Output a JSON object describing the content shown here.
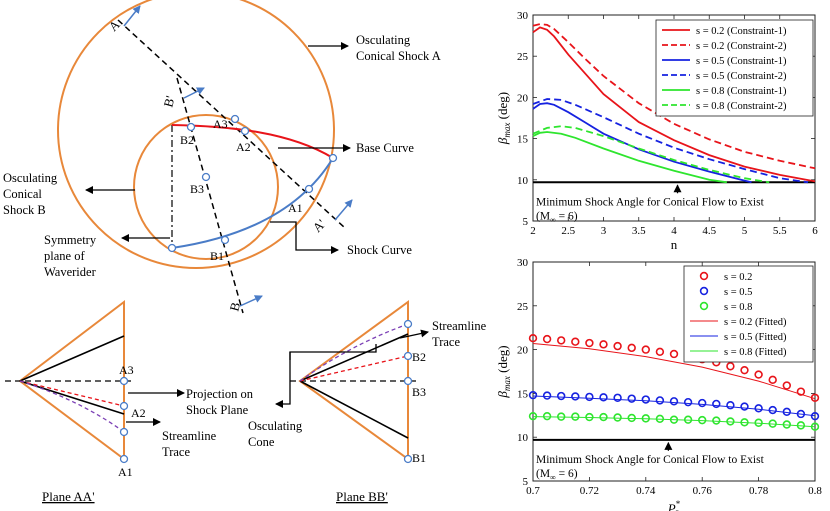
{
  "diagram": {
    "callouts": {
      "shock_a": [
        "Osculating",
        "Conical Shock  A"
      ],
      "shock_b": [
        "Osculating",
        "Conical",
        "Shock  B"
      ],
      "base_curve": "Base Curve",
      "symmetry": [
        "Symmetry",
        "plane of",
        "Waverider"
      ],
      "shock_curve": "Shock Curve"
    },
    "plane_labels": {
      "a": "A",
      "a_prime": "A'",
      "b": "B",
      "b_prime": "B'"
    },
    "points": {
      "a1": "A1",
      "a2": "A2",
      "a3": "A3",
      "b1": "B1",
      "b2": "B2",
      "b3": "B3"
    },
    "sections": {
      "plane_aa": "Plane AA'",
      "plane_bb": "Plane BB'",
      "projection": [
        "Projection on",
        "Shock Plane"
      ],
      "streamline_left": [
        "Streamline",
        "Trace"
      ],
      "streamline_right": [
        "Streamline",
        "Trace"
      ],
      "osculating_cone": [
        "Osculating",
        "Cone"
      ],
      "a1": "A1",
      "a2": "A2",
      "a3": "A3",
      "b1": "B1",
      "b2": "B2",
      "b3": "B3"
    }
  },
  "chart_data": [
    {
      "type": "line",
      "xlabel": "n",
      "ylabel": "β_max (deg)",
      "ylabel_main": "β",
      "ylabel_sub": "max",
      "ylabel_unit": " (deg)",
      "xlim": [
        2,
        6
      ],
      "ylim": [
        5,
        30
      ],
      "xticks": [
        "2",
        "2.5",
        "3",
        "3.5",
        "4",
        "4.5",
        "5",
        "5.5",
        "6"
      ],
      "yticks": [
        "5",
        "10",
        "15",
        "20",
        "25",
        "30"
      ],
      "legend_position": "top-right",
      "series": [
        {
          "name": "s = 0.2 (Constraint-1)",
          "color": "#e8141a",
          "dash": "solid",
          "x": [
            2,
            2.1,
            2.2,
            2.3,
            2.5,
            2.75,
            3,
            3.5,
            4,
            4.5,
            5,
            5.5,
            6
          ],
          "y": [
            27.9,
            28.5,
            28.2,
            27.4,
            25.2,
            22.8,
            20.4,
            17.0,
            14.8,
            13.0,
            11.6,
            10.6,
            9.8
          ]
        },
        {
          "name": "s = 0.2 (Constraint-2)",
          "color": "#e8141a",
          "dash": "dashed",
          "x": [
            2,
            2.1,
            2.2,
            2.3,
            2.5,
            2.75,
            3,
            3.5,
            4,
            4.5,
            5,
            5.5,
            6
          ],
          "y": [
            28.7,
            28.9,
            28.8,
            28.3,
            26.7,
            24.6,
            22.6,
            19.3,
            16.8,
            14.9,
            13.4,
            12.3,
            11.4
          ]
        },
        {
          "name": "s = 0.5 (Constraint-1)",
          "color": "#1622e0",
          "dash": "solid",
          "x": [
            2,
            2.1,
            2.2,
            2.3,
            2.5,
            2.75,
            3,
            3.5,
            4,
            4.5,
            5,
            5.1
          ],
          "y": [
            18.6,
            19.2,
            19.3,
            19.1,
            18.2,
            16.9,
            15.6,
            13.7,
            12.2,
            11.0,
            9.9,
            9.7
          ]
        },
        {
          "name": "s = 0.5 (Constraint-2)",
          "color": "#1622e0",
          "dash": "dashed",
          "x": [
            2,
            2.2,
            2.4,
            2.6,
            3,
            3.5,
            4,
            4.5,
            5,
            5.5,
            5.9
          ],
          "y": [
            19.2,
            19.8,
            19.7,
            19.1,
            17.6,
            15.6,
            13.9,
            12.5,
            11.3,
            10.2,
            9.7
          ]
        },
        {
          "name": "s = 0.8 (Constraint-1)",
          "color": "#2ee52e",
          "dash": "solid",
          "x": [
            2,
            2.1,
            2.2,
            2.4,
            2.6,
            3,
            3.5,
            4,
            4.5,
            4.75
          ],
          "y": [
            15.3,
            15.7,
            15.8,
            15.6,
            15.1,
            13.8,
            12.3,
            11.1,
            10.0,
            9.7
          ]
        },
        {
          "name": "s = 0.8 (Constraint-2)",
          "color": "#2ee52e",
          "dash": "dashed",
          "x": [
            2,
            2.2,
            2.4,
            2.6,
            3,
            3.5,
            4,
            4.5,
            5,
            5.35
          ],
          "y": [
            15.6,
            16.3,
            16.5,
            16.3,
            15.3,
            13.8,
            12.4,
            11.2,
            10.2,
            9.7
          ]
        }
      ],
      "reference_line": {
        "y": 9.7,
        "color": "#000000"
      },
      "annotation": {
        "line1": "Minimum Shock Angle for Conical Flow to Exist",
        "line2_prefix": "(M",
        "line2_sub": "∞",
        "line2_suffix": " = 6)",
        "arrow_x": 4.05
      }
    },
    {
      "type": "scatter",
      "xlabel": "P3*",
      "xlabel_main": "P",
      "xlabel_sub": "3",
      "xlabel_sup": "*",
      "ylabel": "β_max (deg)",
      "ylabel_main": "β",
      "ylabel_sub": "max",
      "ylabel_unit": " (deg)",
      "xlim": [
        0.7,
        0.8
      ],
      "ylim": [
        5,
        30
      ],
      "xticks": [
        "0.7",
        "0.72",
        "0.74",
        "0.76",
        "0.78",
        "0.8"
      ],
      "yticks": [
        "5",
        "10",
        "15",
        "20",
        "25",
        "30"
      ],
      "legend_position": "top-right",
      "x": [
        0.7,
        0.705,
        0.71,
        0.715,
        0.72,
        0.725,
        0.73,
        0.735,
        0.74,
        0.745,
        0.75,
        0.755,
        0.76,
        0.765,
        0.77,
        0.775,
        0.78,
        0.785,
        0.79,
        0.795,
        0.8
      ],
      "series": [
        {
          "name": "s = 0.2",
          "color": "#e8141a",
          "y": [
            21.3,
            21.2,
            21.05,
            20.9,
            20.75,
            20.6,
            20.4,
            20.2,
            20.0,
            19.75,
            19.5,
            19.2,
            18.9,
            18.55,
            18.1,
            17.65,
            17.15,
            16.55,
            15.9,
            15.2,
            14.5
          ]
        },
        {
          "name": "s = 0.5",
          "color": "#1622e0",
          "y": [
            14.8,
            14.75,
            14.7,
            14.65,
            14.6,
            14.55,
            14.5,
            14.4,
            14.3,
            14.2,
            14.1,
            14.0,
            13.9,
            13.8,
            13.65,
            13.5,
            13.3,
            13.1,
            12.9,
            12.65,
            12.4
          ]
        },
        {
          "name": "s = 0.8",
          "color": "#2ee52e",
          "y": [
            12.4,
            12.4,
            12.35,
            12.35,
            12.3,
            12.3,
            12.25,
            12.2,
            12.15,
            12.1,
            12.0,
            12.0,
            11.95,
            11.9,
            11.8,
            11.7,
            11.65,
            11.55,
            11.45,
            11.35,
            11.2
          ]
        }
      ],
      "fitted": [
        {
          "name": "s = 0.2 (Fitted)",
          "color": "#e8141a",
          "x": [
            0.7,
            0.72,
            0.74,
            0.76,
            0.78,
            0.8
          ],
          "y": [
            20.7,
            20.1,
            19.2,
            18.0,
            16.4,
            14.4
          ]
        },
        {
          "name": "s = 0.5 (Fitted)",
          "color": "#1622e0",
          "x": [
            0.7,
            0.72,
            0.74,
            0.76,
            0.78,
            0.8
          ],
          "y": [
            14.7,
            14.45,
            14.15,
            13.75,
            13.2,
            12.45
          ]
        },
        {
          "name": "s = 0.8 (Fitted)",
          "color": "#2ee52e",
          "x": [
            0.7,
            0.72,
            0.74,
            0.76,
            0.78,
            0.8
          ],
          "y": [
            12.35,
            12.25,
            12.1,
            11.9,
            11.6,
            11.2
          ]
        }
      ],
      "reference_line": {
        "y": 9.7,
        "color": "#000000"
      },
      "annotation": {
        "line1": "Minimum Shock Angle for Conical Flow to Exist",
        "line2_prefix": "(M",
        "line2_sub": "∞",
        "line2_suffix": " = 6)",
        "arrow_x": 0.748
      }
    }
  ]
}
